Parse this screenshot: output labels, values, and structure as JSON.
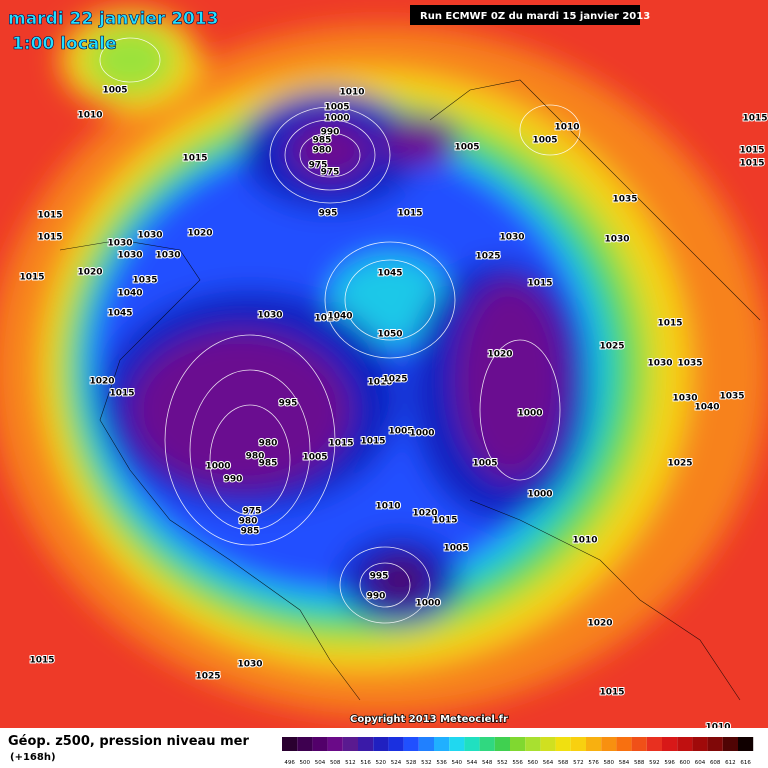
{
  "header": {
    "date": "mardi 22 janvier 2013",
    "time": "1:00 locale",
    "run": "Run ECMWF 0Z du mardi 15 janvier 2013"
  },
  "copyright": "Copyright 2013 Meteociel.fr",
  "footer": {
    "title": "Géop. z500, pression niveau mer",
    "lead": "(+168h)"
  },
  "legend": {
    "values": [
      496,
      500,
      504,
      508,
      512,
      516,
      520,
      524,
      528,
      532,
      536,
      540,
      544,
      548,
      552,
      556,
      560,
      564,
      568,
      572,
      576,
      580,
      584,
      588,
      592,
      596,
      600,
      604,
      608,
      612,
      616
    ]
  },
  "isobar_labels": [
    "1005",
    "1010",
    "1015",
    "1015",
    "1015",
    "1030",
    "1030",
    "1020",
    "1030",
    "1030",
    "1020",
    "1015",
    "1035",
    "1040",
    "1045",
    "1030",
    "1010",
    "1040",
    "1045",
    "1050",
    "1010",
    "1005",
    "1000",
    "990",
    "985",
    "980",
    "975",
    "975",
    "995",
    "1015",
    "1005",
    "1010",
    "1005",
    "1030",
    "1025",
    "1035",
    "1030",
    "1015",
    "1025",
    "1015",
    "1030",
    "1035",
    "1030",
    "1040",
    "1035",
    "1025",
    "1020",
    "1000",
    "1005",
    "1000",
    "1010",
    "1020",
    "1015",
    "1015",
    "1015",
    "1020",
    "1015",
    "995",
    "1010",
    "1025",
    "1005",
    "1000",
    "1015",
    "1015",
    "980",
    "980",
    "985",
    "1005",
    "1000",
    "990",
    "975",
    "980",
    "985",
    "1010",
    "1020",
    "1015",
    "1005",
    "995",
    "990",
    "1000",
    "1015",
    "1030",
    "1025",
    "1015",
    "1010"
  ]
}
